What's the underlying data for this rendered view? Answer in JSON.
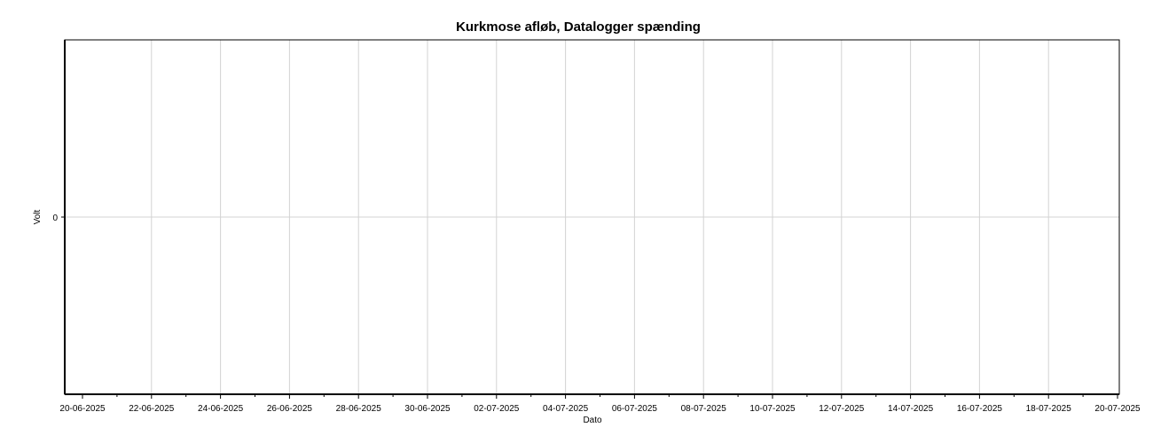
{
  "chart_data": {
    "type": "line",
    "title": "Kurkmose afløb, Datalogger spænding",
    "xlabel": "Dato",
    "ylabel": "Volt",
    "x_ticks": [
      "20-06-2025",
      "22-06-2025",
      "24-06-2025",
      "26-06-2025",
      "28-06-2025",
      "30-06-2025",
      "02-07-2025",
      "04-07-2025",
      "06-07-2025",
      "08-07-2025",
      "10-07-2025",
      "12-07-2025",
      "14-07-2025",
      "16-07-2025",
      "18-07-2025",
      "20-07-2025"
    ],
    "y_ticks": [
      "0"
    ],
    "ylim": [
      -1,
      1
    ],
    "series": [],
    "grid": true,
    "colors": {
      "grid": "#d3d3d3",
      "axis": "#000000",
      "background": "#ffffff"
    }
  }
}
